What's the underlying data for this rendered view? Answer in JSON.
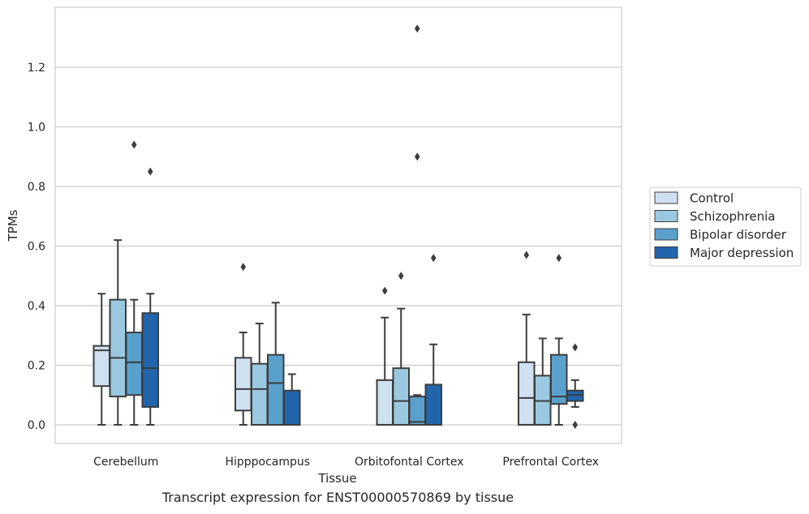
{
  "caption": "Transcript expression for ENST00000570869 by tissue",
  "chart_data": {
    "type": "box",
    "xlabel": "Tissue",
    "ylabel": "TPMs",
    "ylim": [
      -0.065,
      1.41
    ],
    "yticks": [
      0.0,
      0.2,
      0.4,
      0.6,
      0.8,
      1.0,
      1.2
    ],
    "ytick_labels": [
      "0.0",
      "0.2",
      "0.4",
      "0.6",
      "0.8",
      "1.0",
      "1.2"
    ],
    "grid": "horizontal",
    "legend_position": "right",
    "categories": [
      "Cerebellum",
      "Hipppocampus",
      "Orbitofontal Cortex",
      "Prefrontal Cortex"
    ],
    "series": [
      {
        "name": "Control",
        "color": "#cfe0f1",
        "boxes": [
          {
            "whisker_low": 0.0,
            "q1": 0.13,
            "median": 0.25,
            "q3": 0.265,
            "whisker_high": 0.44,
            "outliers": []
          },
          {
            "whisker_low": 0.0,
            "q1": 0.048,
            "median": 0.12,
            "q3": 0.225,
            "whisker_high": 0.31,
            "outliers": [
              0.53
            ]
          },
          {
            "whisker_low": 0.0,
            "q1": 0.0,
            "median": 0.0,
            "q3": 0.15,
            "whisker_high": 0.36,
            "outliers": [
              0.45
            ]
          },
          {
            "whisker_low": 0.0,
            "q1": 0.0,
            "median": 0.09,
            "q3": 0.21,
            "whisker_high": 0.37,
            "outliers": [
              0.57
            ]
          }
        ]
      },
      {
        "name": "Schizophrenia",
        "color": "#9ac8e0",
        "boxes": [
          {
            "whisker_low": 0.0,
            "q1": 0.095,
            "median": 0.225,
            "q3": 0.42,
            "whisker_high": 0.62,
            "outliers": []
          },
          {
            "whisker_low": 0.0,
            "q1": 0.0,
            "median": 0.12,
            "q3": 0.205,
            "whisker_high": 0.34,
            "outliers": []
          },
          {
            "whisker_low": 0.0,
            "q1": 0.0,
            "median": 0.08,
            "q3": 0.19,
            "whisker_high": 0.39,
            "outliers": [
              0.5
            ]
          },
          {
            "whisker_low": 0.0,
            "q1": 0.0,
            "median": 0.08,
            "q3": 0.165,
            "whisker_high": 0.29,
            "outliers": []
          }
        ]
      },
      {
        "name": "Bipolar disorder",
        "color": "#5aa0cd",
        "boxes": [
          {
            "whisker_low": 0.0,
            "q1": 0.1,
            "median": 0.21,
            "q3": 0.31,
            "whisker_high": 0.42,
            "outliers": [
              0.94
            ]
          },
          {
            "whisker_low": 0.0,
            "q1": 0.0,
            "median": 0.14,
            "q3": 0.235,
            "whisker_high": 0.41,
            "outliers": []
          },
          {
            "whisker_low": 0.0,
            "q1": 0.0,
            "median": 0.01,
            "q3": 0.095,
            "whisker_high": 0.1,
            "outliers": [
              0.9,
              1.33
            ]
          },
          {
            "whisker_low": 0.0,
            "q1": 0.07,
            "median": 0.095,
            "q3": 0.235,
            "whisker_high": 0.29,
            "outliers": [
              0.56
            ]
          }
        ]
      },
      {
        "name": "Major depression",
        "color": "#2166ac",
        "boxes": [
          {
            "whisker_low": 0.0,
            "q1": 0.06,
            "median": 0.19,
            "q3": 0.375,
            "whisker_high": 0.44,
            "outliers": [
              0.85
            ]
          },
          {
            "whisker_low": 0.0,
            "q1": 0.0,
            "median": 0.0,
            "q3": 0.115,
            "whisker_high": 0.17,
            "outliers": []
          },
          {
            "whisker_low": 0.0,
            "q1": 0.0,
            "median": 0.0,
            "q3": 0.135,
            "whisker_high": 0.27,
            "outliers": [
              0.56
            ]
          },
          {
            "whisker_low": 0.06,
            "q1": 0.08,
            "median": 0.1,
            "q3": 0.115,
            "whisker_high": 0.15,
            "outliers": [
              0.26,
              0.0
            ]
          }
        ]
      }
    ]
  }
}
